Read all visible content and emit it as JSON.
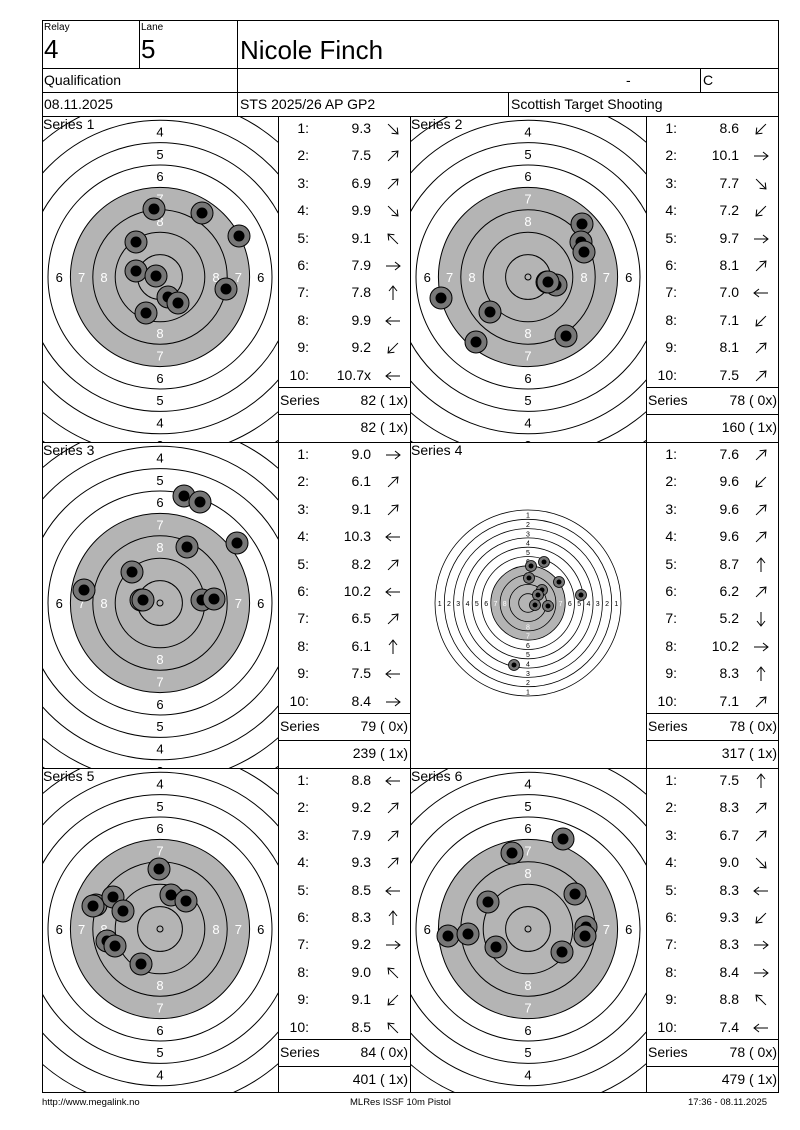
{
  "header": {
    "relay_label": "Relay",
    "relay": "4",
    "lane_label": "Lane",
    "lane": "5",
    "name": "Nicole Finch",
    "event": "Qualification",
    "dash": "-",
    "class": "C",
    "date": "08.11.2025",
    "competition": "STS 2025/26 AP GP2",
    "club": "Scottish Target Shooting"
  },
  "series": [
    {
      "label": "Series 1",
      "shots": [
        {
          "n": "1:",
          "v": "9.3",
          "d": "se"
        },
        {
          "n": "2:",
          "v": "7.5",
          "d": "ne"
        },
        {
          "n": "3:",
          "v": "6.9",
          "d": "ne"
        },
        {
          "n": "4:",
          "v": "9.9",
          "d": "se"
        },
        {
          "n": "5:",
          "v": "9.1",
          "d": "nw"
        },
        {
          "n": "6:",
          "v": "7.9",
          "d": "e"
        },
        {
          "n": "7:",
          "v": "7.8",
          "d": "n"
        },
        {
          "n": "8:",
          "v": "9.9",
          "d": "w"
        },
        {
          "n": "9:",
          "v": "9.2",
          "d": "sw"
        },
        {
          "n": "10:",
          "v": "10.7x",
          "d": "w"
        }
      ],
      "series_label": "Series",
      "series_total": "82 ( 1x)",
      "running_total": "82 ( 1x)"
    },
    {
      "label": "Series 2",
      "shots": [
        {
          "n": "1:",
          "v": "8.6",
          "d": "sw"
        },
        {
          "n": "2:",
          "v": "10.1",
          "d": "e"
        },
        {
          "n": "3:",
          "v": "7.7",
          "d": "se"
        },
        {
          "n": "4:",
          "v": "7.2",
          "d": "sw"
        },
        {
          "n": "5:",
          "v": "9.7",
          "d": "e"
        },
        {
          "n": "6:",
          "v": "8.1",
          "d": "ne"
        },
        {
          "n": "7:",
          "v": "7.0",
          "d": "w"
        },
        {
          "n": "8:",
          "v": "7.1",
          "d": "sw"
        },
        {
          "n": "9:",
          "v": "8.1",
          "d": "ne"
        },
        {
          "n": "10:",
          "v": "7.5",
          "d": "ne"
        }
      ],
      "series_label": "Series",
      "series_total": "78 ( 0x)",
      "running_total": "160 ( 1x)"
    },
    {
      "label": "Series 3",
      "shots": [
        {
          "n": "1:",
          "v": "9.0",
          "d": "e"
        },
        {
          "n": "2:",
          "v": "6.1",
          "d": "ne"
        },
        {
          "n": "3:",
          "v": "9.1",
          "d": "ne"
        },
        {
          "n": "4:",
          "v": "10.3",
          "d": "w"
        },
        {
          "n": "5:",
          "v": "8.2",
          "d": "ne"
        },
        {
          "n": "6:",
          "v": "10.2",
          "d": "w"
        },
        {
          "n": "7:",
          "v": "6.5",
          "d": "ne"
        },
        {
          "n": "8:",
          "v": "6.1",
          "d": "n"
        },
        {
          "n": "9:",
          "v": "7.5",
          "d": "w"
        },
        {
          "n": "10:",
          "v": "8.4",
          "d": "e"
        }
      ],
      "series_label": "Series",
      "series_total": "79 ( 0x)",
      "running_total": "239 ( 1x)"
    },
    {
      "label": "Series 4",
      "shots": [
        {
          "n": "1:",
          "v": "7.6",
          "d": "ne"
        },
        {
          "n": "2:",
          "v": "9.6",
          "d": "sw"
        },
        {
          "n": "3:",
          "v": "9.6",
          "d": "ne"
        },
        {
          "n": "4:",
          "v": "9.6",
          "d": "ne"
        },
        {
          "n": "5:",
          "v": "8.7",
          "d": "n"
        },
        {
          "n": "6:",
          "v": "6.2",
          "d": "ne"
        },
        {
          "n": "7:",
          "v": "5.2",
          "d": "s"
        },
        {
          "n": "8:",
          "v": "10.2",
          "d": "e"
        },
        {
          "n": "9:",
          "v": "8.3",
          "d": "n"
        },
        {
          "n": "10:",
          "v": "7.1",
          "d": "ne"
        }
      ],
      "series_label": "Series",
      "series_total": "78 ( 0x)",
      "running_total": "317 ( 1x)"
    },
    {
      "label": "Series 5",
      "shots": [
        {
          "n": "1:",
          "v": "8.8",
          "d": "w"
        },
        {
          "n": "2:",
          "v": "9.2",
          "d": "ne"
        },
        {
          "n": "3:",
          "v": "7.9",
          "d": "ne"
        },
        {
          "n": "4:",
          "v": "9.3",
          "d": "ne"
        },
        {
          "n": "5:",
          "v": "8.5",
          "d": "w"
        },
        {
          "n": "6:",
          "v": "8.3",
          "d": "n"
        },
        {
          "n": "7:",
          "v": "9.2",
          "d": "e"
        },
        {
          "n": "8:",
          "v": "9.0",
          "d": "nw"
        },
        {
          "n": "9:",
          "v": "9.1",
          "d": "sw"
        },
        {
          "n": "10:",
          "v": "8.5",
          "d": "nw"
        }
      ],
      "series_label": "Series",
      "series_total": "84 ( 0x)",
      "running_total": "401 ( 1x)"
    },
    {
      "label": "Series 6",
      "shots": [
        {
          "n": "1:",
          "v": "7.5",
          "d": "n"
        },
        {
          "n": "2:",
          "v": "8.3",
          "d": "ne"
        },
        {
          "n": "3:",
          "v": "6.7",
          "d": "ne"
        },
        {
          "n": "4:",
          "v": "9.0",
          "d": "se"
        },
        {
          "n": "5:",
          "v": "8.3",
          "d": "w"
        },
        {
          "n": "6:",
          "v": "9.3",
          "d": "sw"
        },
        {
          "n": "7:",
          "v": "8.3",
          "d": "e"
        },
        {
          "n": "8:",
          "v": "8.4",
          "d": "e"
        },
        {
          "n": "9:",
          "v": "8.8",
          "d": "nw"
        },
        {
          "n": "10:",
          "v": "7.4",
          "d": "w"
        }
      ],
      "series_label": "Series",
      "series_total": "78 ( 0x)",
      "running_total": "479 ( 1x)"
    }
  ],
  "footer": {
    "url": "http://www.megalink.no",
    "software": "MLRes ISSF 10m Pistol",
    "timestamp": "17:36 - 08.11.2025"
  },
  "colors": {
    "black_ring": "#b4b4b4",
    "shot_outer": "#777777",
    "shot_inner": "#000000"
  }
}
